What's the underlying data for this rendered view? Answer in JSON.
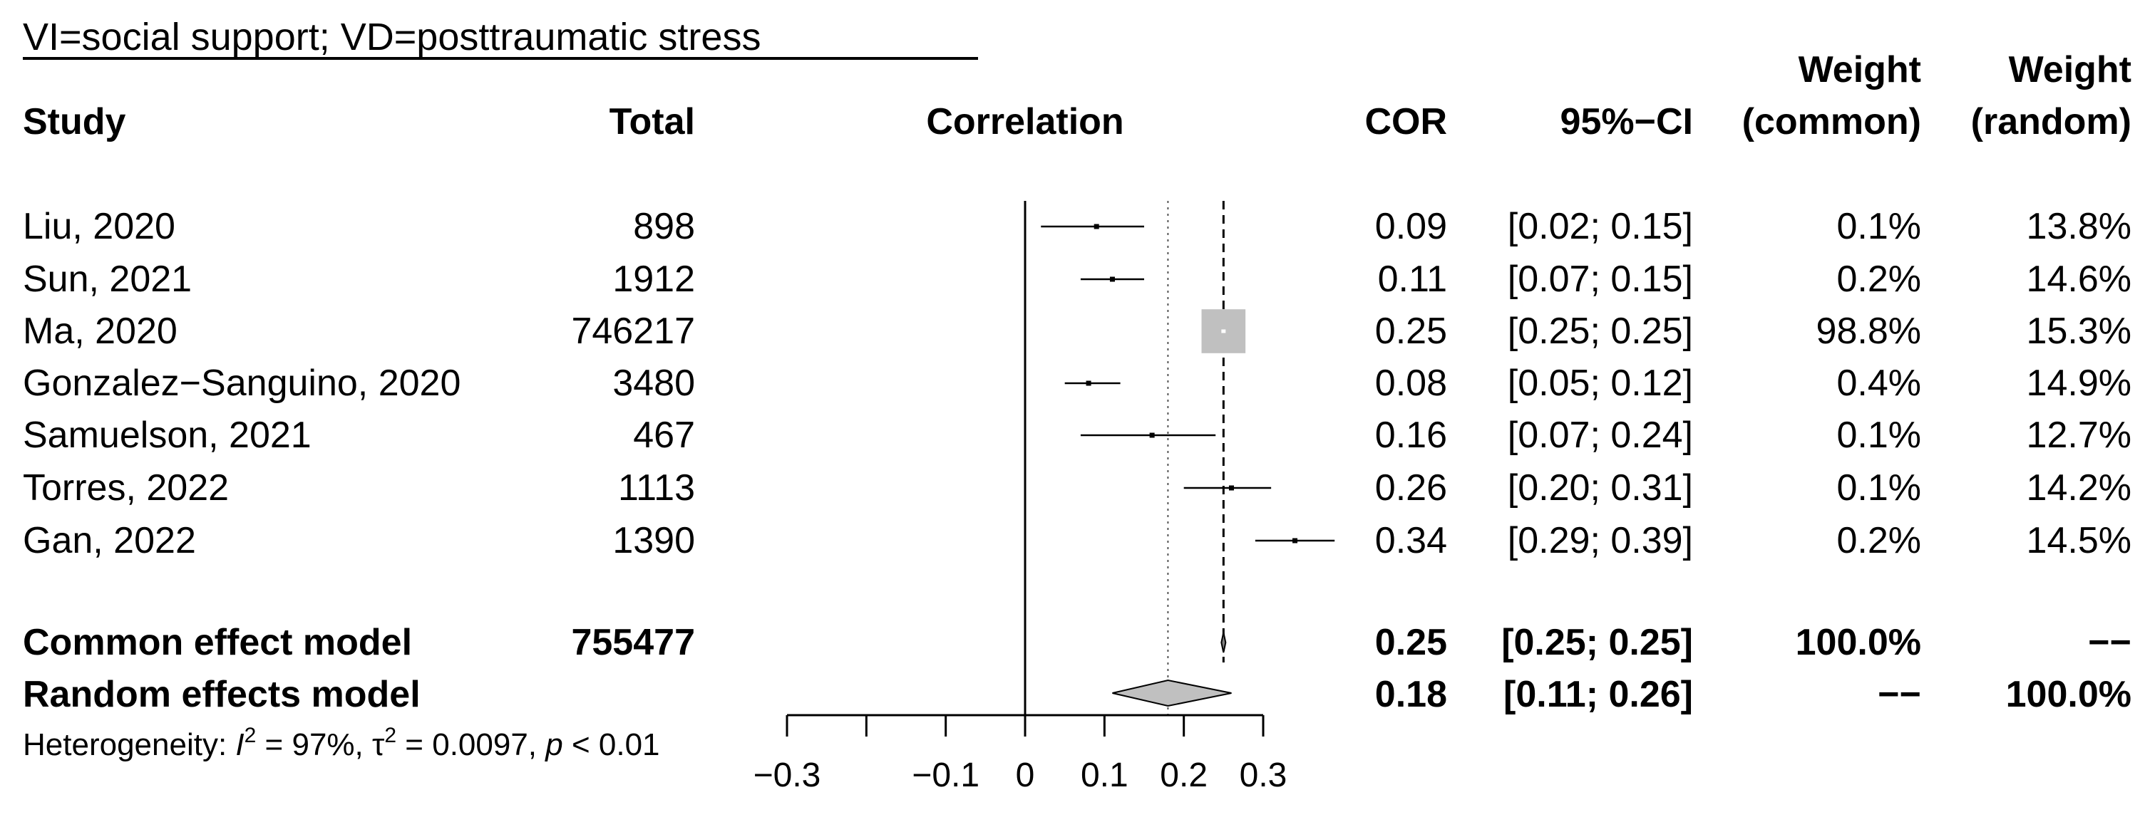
{
  "title": "VI=social support; VD=posttraumatic stress",
  "headers": {
    "study": "Study",
    "total": "Total",
    "correlation": "Correlation",
    "cor": "COR",
    "ci": "95%−CI",
    "weight_common_line1": "Weight",
    "weight_common_line2": "(common)",
    "weight_random_line1": "Weight",
    "weight_random_line2": "(random)"
  },
  "studies": [
    {
      "study": "Liu, 2020",
      "total": "898",
      "cor_text": "0.09",
      "ci_text": "[0.02; 0.15]",
      "w_common": "0.1%",
      "w_random": "13.8%"
    },
    {
      "study": "Sun, 2021",
      "total": "1912",
      "cor_text": "0.11",
      "ci_text": "[0.07; 0.15]",
      "w_common": "0.2%",
      "w_random": "14.6%"
    },
    {
      "study": "Ma, 2020",
      "total": "746217",
      "cor_text": "0.25",
      "ci_text": "[0.25; 0.25]",
      "w_common": "98.8%",
      "w_random": "15.3%"
    },
    {
      "study": "Gonzalez−Sanguino, 2020",
      "total": "3480",
      "cor_text": "0.08",
      "ci_text": "[0.05; 0.12]",
      "w_common": "0.4%",
      "w_random": "14.9%"
    },
    {
      "study": "Samuelson, 2021",
      "total": "467",
      "cor_text": "0.16",
      "ci_text": "[0.07; 0.24]",
      "w_common": "0.1%",
      "w_random": "12.7%"
    },
    {
      "study": "Torres, 2022",
      "total": "1113",
      "cor_text": "0.26",
      "ci_text": "[0.20; 0.31]",
      "w_common": "0.1%",
      "w_random": "14.2%"
    },
    {
      "study": "Gan, 2022",
      "total": "1390",
      "cor_text": "0.34",
      "ci_text": "[0.29; 0.39]",
      "w_common": "0.2%",
      "w_random": "14.5%"
    }
  ],
  "summary": [
    {
      "label": "Common effect model",
      "total": "755477",
      "cor_text": "0.25",
      "ci_text": "[0.25; 0.25]",
      "w_common": "100.0%",
      "w_random": "−−"
    },
    {
      "label": "Random effects model",
      "total": "",
      "cor_text": "0.18",
      "ci_text": "[0.11; 0.26]",
      "w_common": "−−",
      "w_random": "100.0%"
    }
  ],
  "heterogeneity": {
    "prefix": "Heterogeneity: ",
    "i_symbol": "I",
    "sup2": "2",
    "i2_value": " = 97%, ",
    "tau_symbol": "τ",
    "tau_value": " = 0.0097, ",
    "p_symbol": "p",
    "p_value": " < 0.01"
  },
  "chart_data": {
    "type": "forest",
    "xlabel": "Correlation",
    "xlim": [
      -0.3,
      0.3
    ],
    "x_ticks": [
      -0.3,
      -0.2,
      -0.1,
      0,
      0.1,
      0.2,
      0.3
    ],
    "x_tick_labels": [
      "−0.3",
      "",
      "−0.1",
      "0",
      "0.1",
      "0.2",
      "0.3"
    ],
    "null_line": 0,
    "series": [
      {
        "name": "Liu, 2020",
        "cor": 0.09,
        "lower": 0.02,
        "upper": 0.15,
        "weight_common": 0.1
      },
      {
        "name": "Sun, 2021",
        "cor": 0.11,
        "lower": 0.07,
        "upper": 0.15,
        "weight_common": 0.2
      },
      {
        "name": "Ma, 2020",
        "cor": 0.25,
        "lower": 0.25,
        "upper": 0.25,
        "weight_common": 98.8
      },
      {
        "name": "Gonzalez−Sanguino, 2020",
        "cor": 0.08,
        "lower": 0.05,
        "upper": 0.12,
        "weight_common": 0.4
      },
      {
        "name": "Samuelson, 2021",
        "cor": 0.16,
        "lower": 0.07,
        "upper": 0.24,
        "weight_common": 0.1
      },
      {
        "name": "Torres, 2022",
        "cor": 0.26,
        "lower": 0.2,
        "upper": 0.31,
        "weight_common": 0.1
      },
      {
        "name": "Gan, 2022",
        "cor": 0.34,
        "lower": 0.29,
        "upper": 0.39,
        "weight_common": 0.2
      }
    ],
    "common_effect": {
      "cor": 0.25,
      "lower": 0.25,
      "upper": 0.25
    },
    "random_effects": {
      "cor": 0.18,
      "lower": 0.11,
      "upper": 0.26
    },
    "colors": {
      "box": "#c0c0c0",
      "diamond": "#c0c0c0",
      "line": "#000000"
    }
  }
}
